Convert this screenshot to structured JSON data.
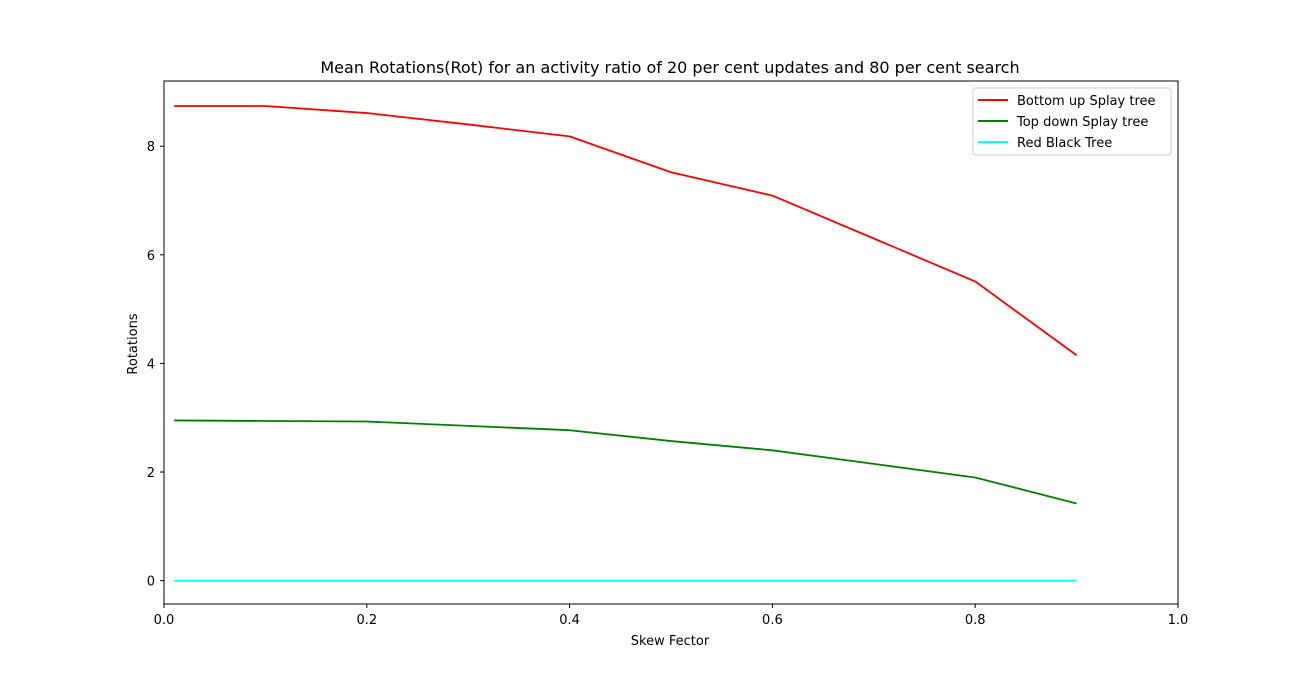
{
  "chart_data": {
    "type": "line",
    "title": "Mean Rotations(Rot) for an activity ratio of 20 per cent updates and 80 per cent search",
    "xlabel": "Skew Fector",
    "ylabel": "Rotations",
    "xlim": [
      0.0,
      1.0
    ],
    "ylim": [
      -0.43,
      9.2
    ],
    "xticks": [
      0.0,
      0.2,
      0.4,
      0.6,
      0.8,
      1.0
    ],
    "xtick_labels": [
      "0.0",
      "0.2",
      "0.4",
      "0.6",
      "0.8",
      "1.0"
    ],
    "yticks": [
      0,
      2,
      4,
      6,
      8
    ],
    "ytick_labels": [
      "0",
      "2",
      "4",
      "6",
      "8"
    ],
    "grid": false,
    "legend_position": "top-right",
    "x": [
      0.01,
      0.1,
      0.2,
      0.3,
      0.4,
      0.5,
      0.6,
      0.7,
      0.8,
      0.9
    ],
    "series": [
      {
        "name": "Bottom up Splay tree",
        "color": "#ff0000",
        "values": [
          8.74,
          8.74,
          8.61,
          8.4,
          8.18,
          7.52,
          7.09,
          6.3,
          5.51,
          4.15
        ]
      },
      {
        "name": "Top down Splay tree",
        "color": "#008000",
        "values": [
          2.95,
          2.94,
          2.93,
          2.85,
          2.77,
          2.57,
          2.4,
          2.15,
          1.9,
          1.42
        ]
      },
      {
        "name": "Red Black Tree",
        "color": "#00ffff",
        "values": [
          0,
          0,
          0,
          0,
          0,
          0,
          0,
          0,
          0,
          0
        ]
      }
    ]
  }
}
